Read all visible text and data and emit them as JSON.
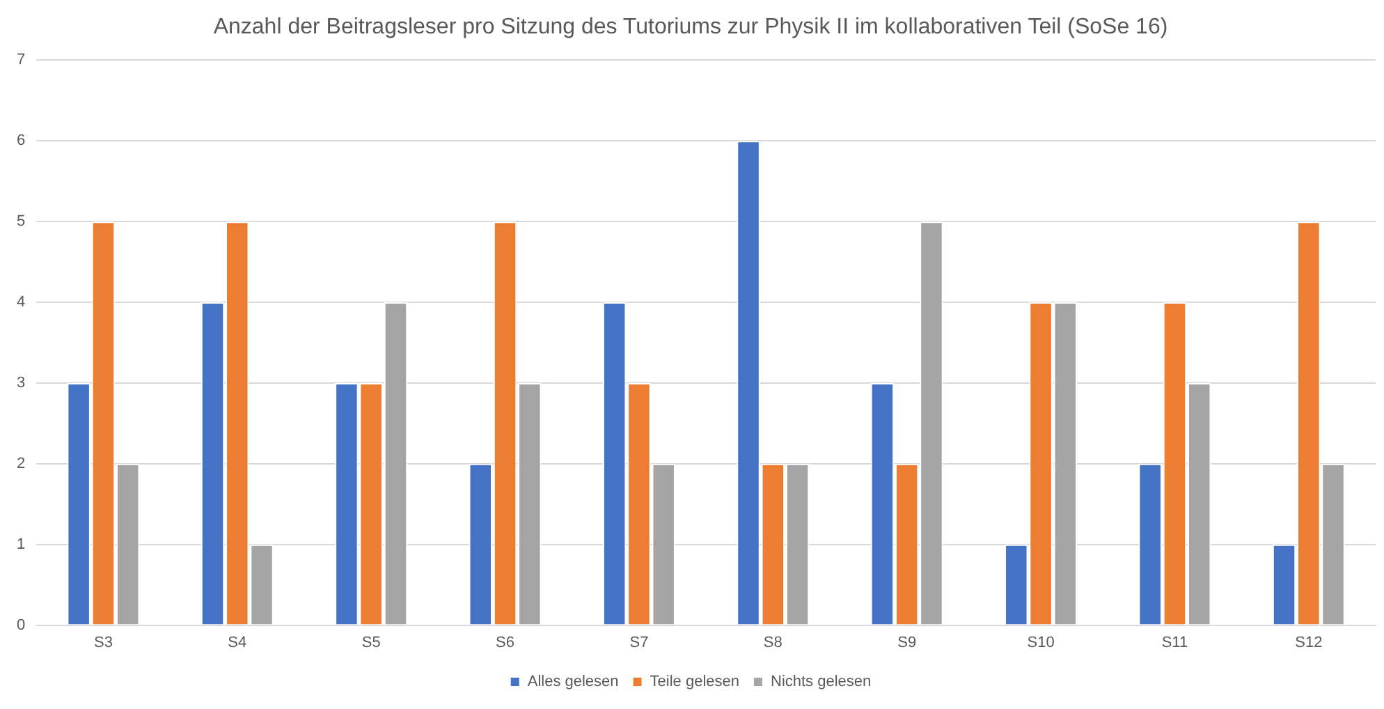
{
  "chart_data": {
    "type": "bar",
    "title": "Anzahl der Beitragsleser pro Sitzung des Tutoriums zur Physik II im kollaborativen Teil (SoSe 16)",
    "categories": [
      "S3",
      "S4",
      "S5",
      "S6",
      "S7",
      "S8",
      "S9",
      "S10",
      "S11",
      "S12"
    ],
    "series": [
      {
        "name": "Alles gelesen",
        "color": "#4472c4",
        "values": [
          3,
          4,
          3,
          2,
          4,
          6,
          3,
          1,
          2,
          1
        ]
      },
      {
        "name": "Teile gelesen",
        "color": "#ed7d31",
        "values": [
          5,
          5,
          3,
          5,
          3,
          2,
          2,
          4,
          4,
          5
        ]
      },
      {
        "name": "Nichts gelesen",
        "color": "#a5a5a5",
        "values": [
          2,
          1,
          4,
          3,
          2,
          2,
          5,
          4,
          3,
          2
        ]
      }
    ],
    "ylim": [
      0,
      7
    ],
    "yticks": [
      0,
      1,
      2,
      3,
      4,
      5,
      6,
      7
    ],
    "grid": "y",
    "legend": "bottom"
  }
}
